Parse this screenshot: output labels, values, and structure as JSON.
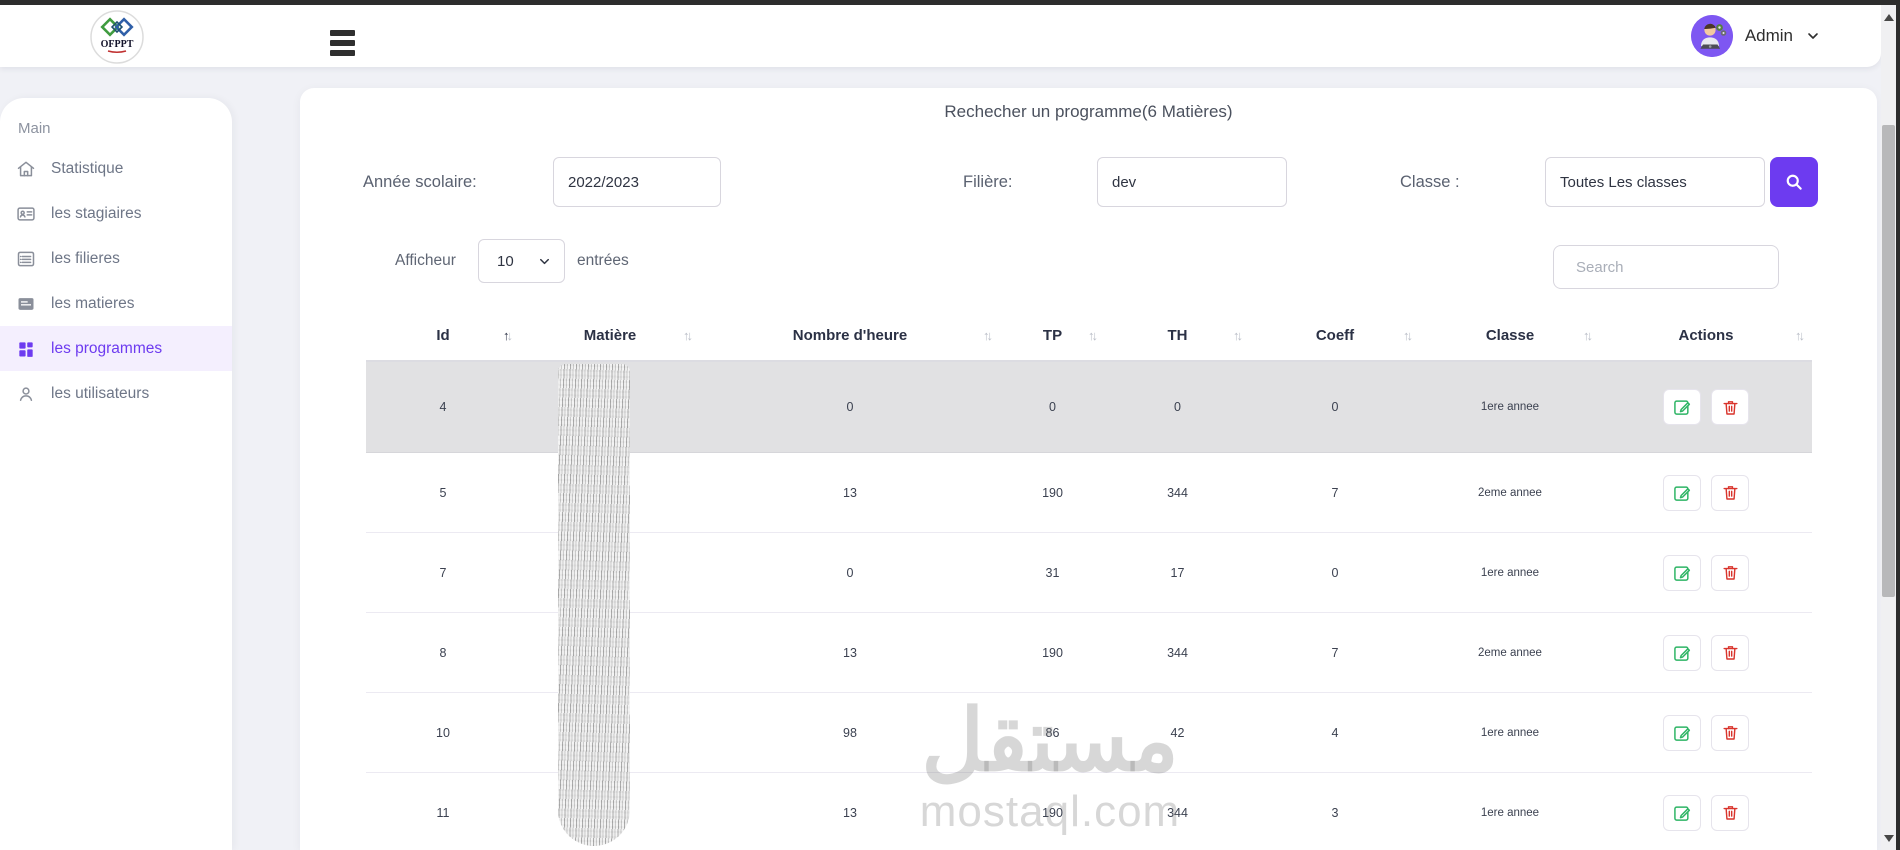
{
  "topbar": {
    "logo_text": "OFPPT",
    "admin_label": "Admin"
  },
  "sidebar": {
    "section_label": "Main",
    "items": [
      {
        "label": "Statistique",
        "icon": "home-icon",
        "active": false
      },
      {
        "label": "les stagiaires",
        "icon": "id-card-icon",
        "active": false
      },
      {
        "label": "les filieres",
        "icon": "list-icon",
        "active": false
      },
      {
        "label": "les matieres",
        "icon": "file-icon",
        "active": false
      },
      {
        "label": "les programmes",
        "icon": "grid-icon",
        "active": true
      },
      {
        "label": "les utilisateurs",
        "icon": "user-icon",
        "active": false
      }
    ]
  },
  "search_panel": {
    "title": "Rechecher un programme(6 Matières)",
    "fields": {
      "annee": {
        "label": "Année scolaire:",
        "value": "2022/2023"
      },
      "filiere": {
        "label": "Filière:",
        "value": "dev"
      },
      "classe": {
        "label": "Classe :",
        "value": "Toutes Les classes"
      }
    }
  },
  "table_controls": {
    "show_label": "Afficheur",
    "entries_value": "10",
    "entries_label": "entrées",
    "search_placeholder": "Search"
  },
  "table": {
    "columns": [
      {
        "label": "Id",
        "sorted": true
      },
      {
        "label": "Matière",
        "sorted": false
      },
      {
        "label": "Nombre d'heure",
        "sorted": false
      },
      {
        "label": "TP",
        "sorted": false
      },
      {
        "label": "TH",
        "sorted": false
      },
      {
        "label": "Coeff",
        "sorted": false
      },
      {
        "label": "Classe",
        "sorted": false
      },
      {
        "label": "Actions",
        "sorted": false
      }
    ],
    "rows": [
      {
        "id": "4",
        "matiere": "",
        "heures": "0",
        "tp": "0",
        "th": "0",
        "coeff": "0",
        "classe": "1ere annee",
        "highlighted": true
      },
      {
        "id": "5",
        "matiere": "",
        "heures": "13",
        "tp": "190",
        "th": "344",
        "coeff": "7",
        "classe": "2eme annee",
        "highlighted": false
      },
      {
        "id": "7",
        "matiere": "",
        "heures": "0",
        "tp": "31",
        "th": "17",
        "coeff": "0",
        "classe": "1ere annee",
        "highlighted": false
      },
      {
        "id": "8",
        "matiere": "",
        "heures": "13",
        "tp": "190",
        "th": "344",
        "coeff": "7",
        "classe": "2eme annee",
        "highlighted": false
      },
      {
        "id": "10",
        "matiere": "",
        "heures": "98",
        "tp": "86",
        "th": "42",
        "coeff": "4",
        "classe": "1ere annee",
        "highlighted": false
      },
      {
        "id": "11",
        "matiere": "",
        "heures": "13",
        "tp": "190",
        "th": "344",
        "coeff": "3",
        "classe": "1ere annee",
        "highlighted": false
      }
    ]
  },
  "watermark": {
    "line1": "مستقل",
    "line2": "mostaql.com"
  },
  "colors": {
    "accent": "#6d3bf0",
    "edit_green": "#2fb566",
    "delete_red": "#d9342c",
    "highlight_row": "#e1e1e3"
  }
}
